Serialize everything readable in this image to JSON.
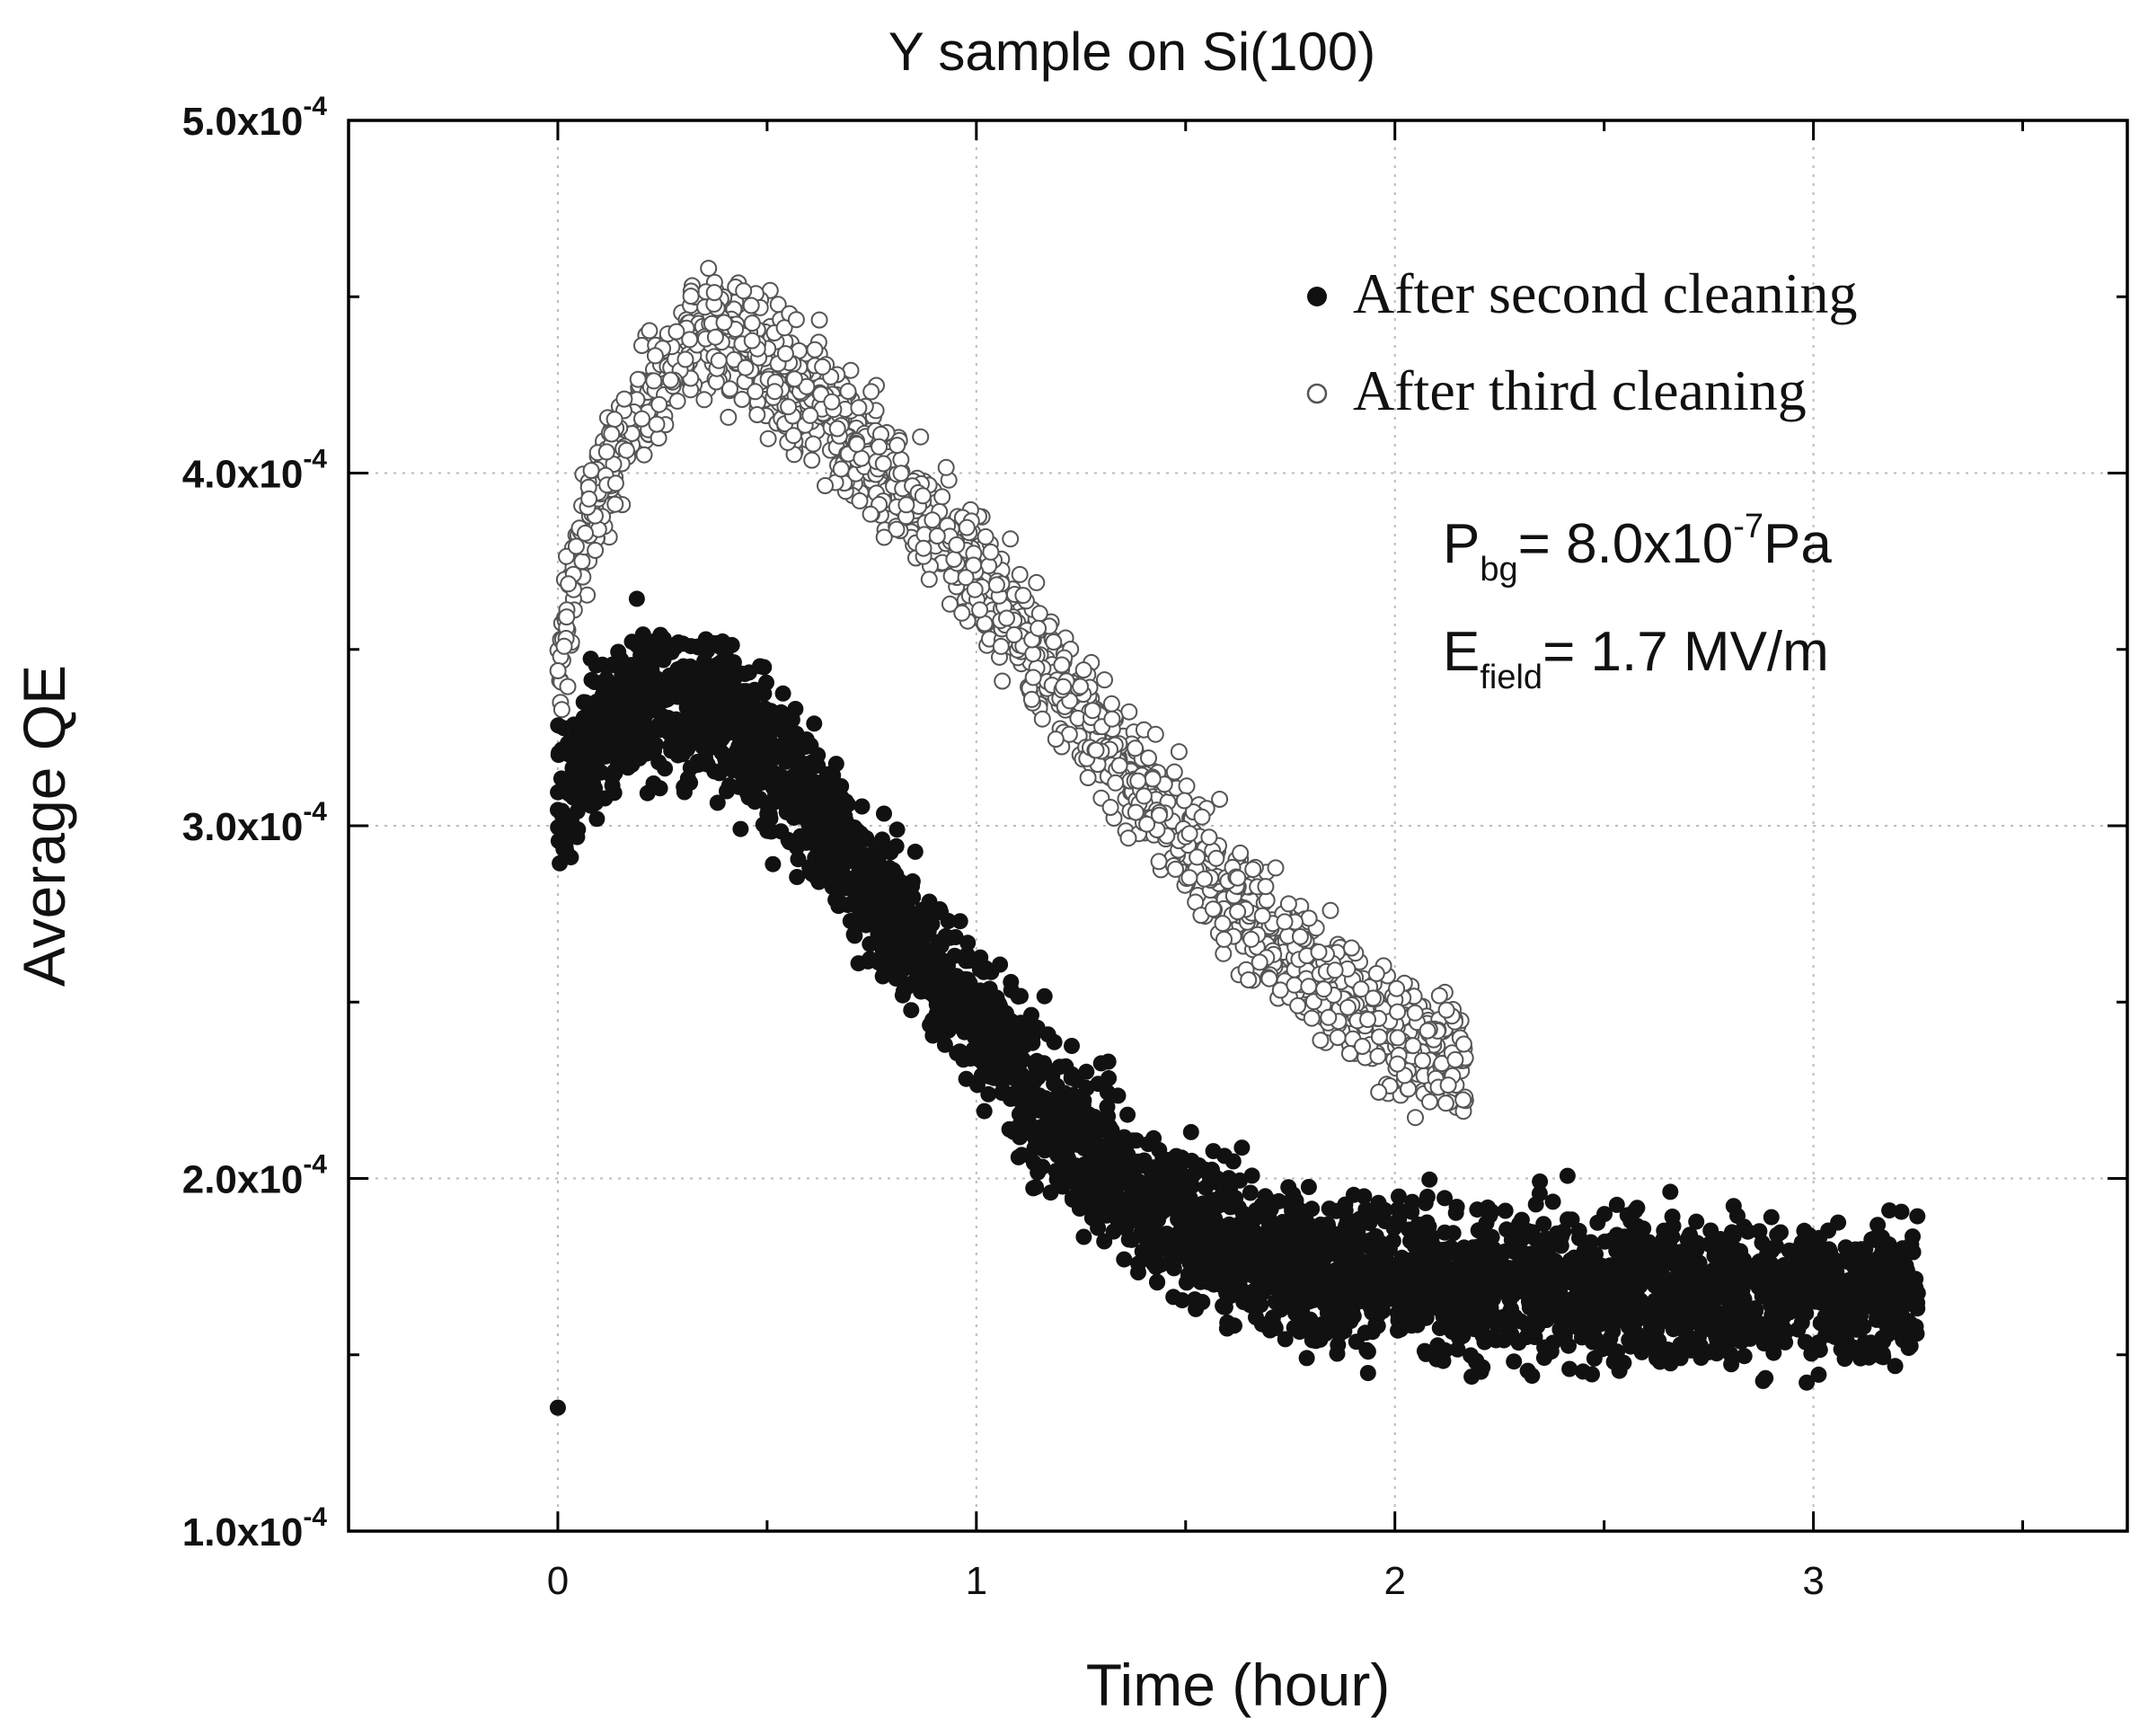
{
  "chart_data": {
    "type": "scatter",
    "title": "Y sample on Si(100)",
    "xlabel": "Time (hour)",
    "ylabel": "Average QE",
    "xlim": [
      -0.5,
      3.75
    ],
    "ylim": [
      0.0001,
      0.0005
    ],
    "x_ticks": [
      0,
      1,
      2,
      3
    ],
    "x_tick_labels": [
      "0",
      "1",
      "2",
      "3"
    ],
    "y_ticks": [
      0.0001,
      0.0002,
      0.0003,
      0.0004,
      0.0005
    ],
    "y_tick_labels": [
      {
        "mantissa": "1.0x10",
        "exp": "-4"
      },
      {
        "mantissa": "2.0x10",
        "exp": "-4"
      },
      {
        "mantissa": "3.0x10",
        "exp": "-4"
      },
      {
        "mantissa": "4.0x10",
        "exp": "-4"
      },
      {
        "mantissa": "5.0x10",
        "exp": "-4"
      }
    ],
    "grid": true,
    "legend_position": "top-right",
    "series": [
      {
        "name": "After second cleaning",
        "marker": "filled-circle",
        "color": "#111111",
        "x_range": [
          0,
          3.25
        ],
        "trend": {
          "x": [
            0.0,
            0.1,
            0.2,
            0.3,
            0.4,
            0.5,
            0.6,
            0.7,
            0.8,
            0.9,
            1.0,
            1.1,
            1.2,
            1.3,
            1.4,
            1.5,
            1.6,
            1.7,
            1.8,
            1.9,
            2.0,
            2.2,
            2.4,
            2.6,
            2.8,
            3.0,
            3.25
          ],
          "y": [
            0.00031,
            0.000325,
            0.000335,
            0.000335,
            0.00033,
            0.00032,
            0.000305,
            0.00029,
            0.000275,
            0.00026,
            0.000245,
            0.00023,
            0.000215,
            0.000205,
            0.000195,
            0.000188,
            0.000182,
            0.000178,
            0.000175,
            0.000173,
            0.000172,
            0.00017,
            0.000169,
            0.000168,
            0.000168,
            0.000167,
            0.000167
          ]
        },
        "spread": 2e-05,
        "outliers": [
          {
            "x": 0.0,
            "y": 0.000135
          }
        ]
      },
      {
        "name": "After third cleaning",
        "marker": "open-circle",
        "color": "#555555",
        "x_range": [
          0,
          2.17
        ],
        "trend": {
          "x": [
            0.0,
            0.05,
            0.1,
            0.2,
            0.3,
            0.4,
            0.5,
            0.6,
            0.7,
            0.8,
            0.9,
            1.0,
            1.1,
            1.2,
            1.3,
            1.4,
            1.5,
            1.6,
            1.7,
            1.8,
            1.9,
            2.0,
            2.1,
            2.17
          ],
          "y": [
            0.000345,
            0.000375,
            0.000395,
            0.00042,
            0.000435,
            0.000438,
            0.000432,
            0.000422,
            0.00041,
            0.000398,
            0.000385,
            0.00037,
            0.000355,
            0.00034,
            0.000325,
            0.00031,
            0.000295,
            0.000282,
            0.00027,
            0.00026,
            0.00025,
            0.000242,
            0.000235,
            0.00023
          ]
        },
        "spread": 1.6e-05
      }
    ],
    "annotations": [
      {
        "main": "P",
        "sub": "bg",
        "rest": "= 8.0x10",
        "sup": "-7",
        "tail": "Pa"
      },
      {
        "main": "E",
        "sub": "field",
        "rest": "= 1.7 MV/m"
      }
    ]
  }
}
